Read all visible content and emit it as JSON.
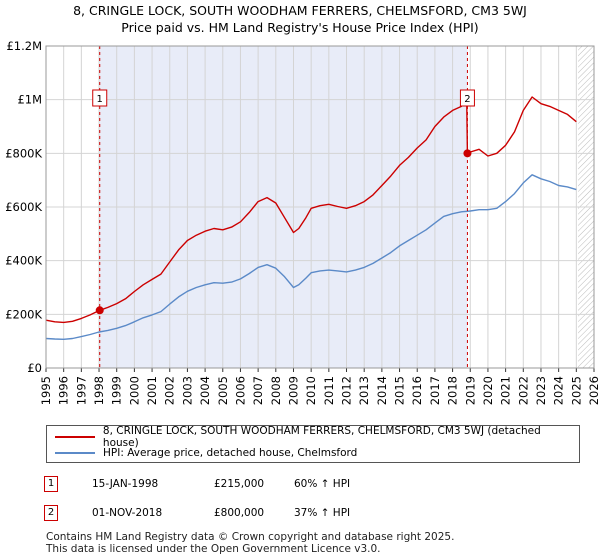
{
  "title_line1": "8, CRINGLE LOCK, SOUTH WOODHAM FERRERS, CHELMSFORD, CM3 5WJ",
  "title_line2": "Price paid vs. HM Land Registry's House Price Index (HPI)",
  "chart_data": {
    "type": "line",
    "xlim": [
      1995,
      2026
    ],
    "ylim": [
      0,
      1200000
    ],
    "yticks": [
      0,
      200000,
      400000,
      600000,
      800000,
      1000000,
      1200000
    ],
    "ytick_labels": [
      "£0",
      "£200K",
      "£400K",
      "£600K",
      "£800K",
      "£1M",
      "£1.2M"
    ],
    "xticks": [
      1995,
      1996,
      1997,
      1998,
      1999,
      2000,
      2001,
      2002,
      2003,
      2004,
      2005,
      2006,
      2007,
      2008,
      2009,
      2010,
      2011,
      2012,
      2013,
      2014,
      2015,
      2016,
      2017,
      2018,
      2019,
      2020,
      2021,
      2022,
      2023,
      2024,
      2025,
      2026
    ],
    "grid": true,
    "shaded_region": [
      1998.04,
      2018.84
    ],
    "hatched_region": [
      2025.1,
      2026
    ],
    "series": [
      {
        "name": "8, CRINGLE LOCK, SOUTH WOODHAM FERRERS, CHELMSFORD, CM3 5WJ (detached house)",
        "color": "#cc0000",
        "x": [
          1995,
          1995.5,
          1996,
          1996.5,
          1997,
          1997.5,
          1998.04,
          1998.5,
          1999,
          1999.5,
          2000,
          2000.5,
          2001,
          2001.5,
          2002,
          2002.5,
          2003,
          2003.5,
          2004,
          2004.5,
          2005,
          2005.5,
          2006,
          2006.5,
          2007,
          2007.5,
          2008,
          2008.5,
          2009,
          2009.3,
          2009.7,
          2010,
          2010.5,
          2011,
          2011.5,
          2012,
          2012.5,
          2013,
          2013.5,
          2014,
          2014.5,
          2015,
          2015.5,
          2016,
          2016.5,
          2017,
          2017.5,
          2018,
          2018.5,
          2018.8,
          2018.84,
          2019,
          2019.5,
          2020,
          2020.5,
          2021,
          2021.5,
          2022,
          2022.5,
          2023,
          2023.5,
          2024,
          2024.5,
          2025
        ],
        "y": [
          178000,
          172000,
          170000,
          174000,
          185000,
          198000,
          215000,
          226000,
          240000,
          258000,
          285000,
          310000,
          330000,
          350000,
          395000,
          440000,
          475000,
          495000,
          510000,
          520000,
          515000,
          525000,
          545000,
          580000,
          620000,
          635000,
          615000,
          560000,
          505000,
          520000,
          560000,
          595000,
          605000,
          610000,
          602000,
          595000,
          605000,
          620000,
          645000,
          680000,
          715000,
          755000,
          785000,
          820000,
          850000,
          900000,
          935000,
          960000,
          975000,
          1010000,
          800000,
          805000,
          815000,
          790000,
          800000,
          830000,
          880000,
          960000,
          1010000,
          985000,
          975000,
          960000,
          945000,
          918000
        ]
      },
      {
        "name": "HPI: Average price, detached house, Chelmsford",
        "color": "#5b8ac8",
        "x": [
          1995,
          1995.5,
          1996,
          1996.5,
          1997,
          1997.5,
          1998,
          1998.5,
          1999,
          1999.5,
          2000,
          2000.5,
          2001,
          2001.5,
          2002,
          2002.5,
          2003,
          2003.5,
          2004,
          2004.5,
          2005,
          2005.5,
          2006,
          2006.5,
          2007,
          2007.5,
          2008,
          2008.5,
          2009,
          2009.3,
          2009.7,
          2010,
          2010.5,
          2011,
          2011.5,
          2012,
          2012.5,
          2013,
          2013.5,
          2014,
          2014.5,
          2015,
          2015.5,
          2016,
          2016.5,
          2017,
          2017.5,
          2018,
          2018.5,
          2019,
          2019.5,
          2020,
          2020.5,
          2021,
          2021.5,
          2022,
          2022.5,
          2023,
          2023.5,
          2024,
          2024.5,
          2025
        ],
        "y": [
          110000,
          108000,
          107000,
          110000,
          117000,
          125000,
          134000,
          140000,
          148000,
          158000,
          172000,
          187000,
          198000,
          210000,
          238000,
          265000,
          286000,
          300000,
          310000,
          318000,
          316000,
          320000,
          332000,
          352000,
          375000,
          385000,
          372000,
          340000,
          300000,
          310000,
          335000,
          355000,
          362000,
          365000,
          362000,
          358000,
          365000,
          375000,
          390000,
          410000,
          430000,
          455000,
          475000,
          495000,
          515000,
          540000,
          565000,
          575000,
          582000,
          585000,
          590000,
          590000,
          595000,
          620000,
          650000,
          690000,
          720000,
          705000,
          695000,
          680000,
          675000,
          665000
        ]
      }
    ],
    "annotations": [
      {
        "label": "1",
        "x": 1998.04,
        "y": 215000
      },
      {
        "label": "2",
        "x": 2018.84,
        "y": 800000
      }
    ]
  },
  "legend": {
    "items": [
      {
        "label": "8, CRINGLE LOCK, SOUTH WOODHAM FERRERS, CHELMSFORD, CM3 5WJ (detached house)",
        "color": "#cc0000"
      },
      {
        "label": "HPI: Average price, detached house, Chelmsford",
        "color": "#5b8ac8"
      }
    ]
  },
  "transactions": [
    {
      "num": "1",
      "date": "15-JAN-1998",
      "price": "£215,000",
      "hpi": "60% ↑ HPI"
    },
    {
      "num": "2",
      "date": "01-NOV-2018",
      "price": "£800,000",
      "hpi": "37% ↑ HPI"
    }
  ],
  "footer": {
    "line1": "Contains HM Land Registry data © Crown copyright and database right 2025.",
    "line2": "This data is licensed under the Open Government Licence v3.0."
  }
}
